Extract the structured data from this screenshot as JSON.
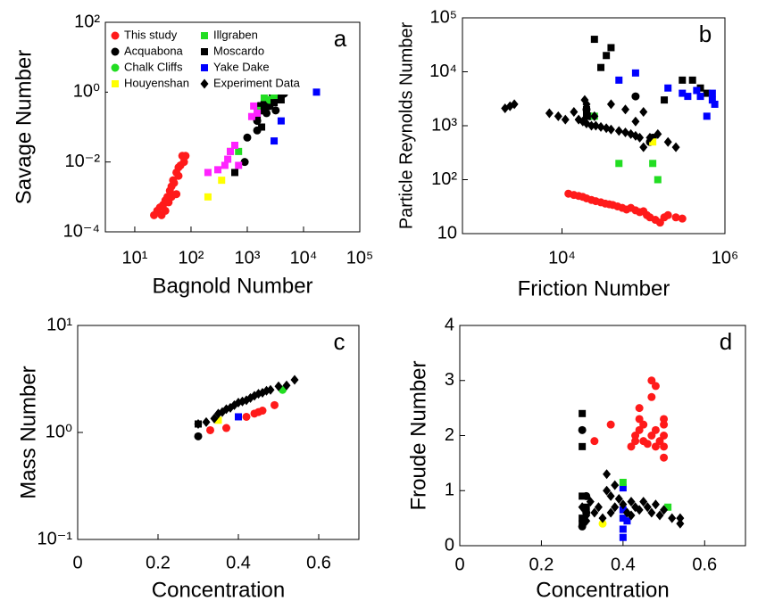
{
  "chart_data": [
    {
      "type": "scatter",
      "panel_label": "a",
      "xlabel": "Bagnold Number",
      "ylabel": "Savage Number",
      "xscale": "log",
      "yscale": "log",
      "xlim": [
        3,
        100000
      ],
      "ylim": [
        0.0001,
        100
      ],
      "xticks": [
        {
          "value": 10,
          "label": "10¹"
        },
        {
          "value": 100,
          "label": "10²"
        },
        {
          "value": 1000,
          "label": "10³"
        },
        {
          "value": 10000,
          "label": "10⁴"
        },
        {
          "value": 100000,
          "label": "10⁵"
        }
      ],
      "yticks": [
        {
          "value": 0.0001,
          "label": "10⁻⁴"
        },
        {
          "value": 0.01,
          "label": "10⁻²"
        },
        {
          "value": 1,
          "label": "10⁰"
        },
        {
          "value": 100,
          "label": "10²"
        }
      ],
      "legend": "upper left",
      "series": [
        {
          "name": "This study",
          "color": "#ff1a1a",
          "marker": "circle",
          "x": [
            22,
            25,
            28,
            30,
            32,
            35,
            38,
            40,
            42,
            45,
            48,
            50,
            55,
            60,
            65,
            70,
            75,
            80,
            35,
            45,
            55,
            60
          ],
          "values": [
            0.0003,
            0.0004,
            0.0005,
            0.0003,
            0.0006,
            0.0008,
            0.001,
            0.0007,
            0.0015,
            0.002,
            0.003,
            0.0025,
            0.005,
            0.004,
            0.008,
            0.015,
            0.01,
            0.015,
            0.0004,
            0.001,
            0.0012,
            0.007
          ]
        },
        {
          "name": "Acquabona",
          "color": "#000000",
          "marker": "circle",
          "x": [
            900,
            1000,
            1500,
            1800,
            2000,
            2500,
            3000,
            3500,
            4000,
            4500,
            2200,
            1600,
            3200,
            2800,
            1500
          ],
          "values": [
            0.01,
            0.05,
            0.15,
            0.3,
            0.5,
            0.4,
            0.6,
            0.7,
            0.8,
            0.9,
            0.25,
            0.4,
            0.3,
            0.9,
            0.08
          ]
        },
        {
          "name": "Chalk Cliffs",
          "color": "#22dd22",
          "marker": "circle",
          "x": [
            2500
          ],
          "values": [
            0.6
          ]
        },
        {
          "name": "Houyenshan",
          "color": "#ffff00",
          "marker": "square",
          "x": [
            200,
            350,
            500
          ],
          "values": [
            0.001,
            0.003,
            0.02
          ]
        },
        {
          "name": "Illgraben",
          "color": "#22dd22",
          "marker": "square",
          "x": [
            500,
            700,
            1500,
            2000,
            3000,
            4000
          ],
          "values": [
            0.02,
            0.02,
            0.3,
            0.7,
            0.8,
            2
          ]
        },
        {
          "name": "Moscardo",
          "color": "#000000",
          "marker": "square",
          "x": [
            600,
            1500,
            2000,
            3000,
            4000,
            1800
          ],
          "values": [
            0.005,
            0.2,
            0.35,
            0.5,
            0.6,
            0.1
          ]
        },
        {
          "name": "Yake Dake",
          "color": "#0000ff",
          "marker": "square",
          "x": [
            3000,
            4000,
            17000
          ],
          "values": [
            0.04,
            0.15,
            1
          ]
        },
        {
          "name": "Experiment Data",
          "color": "#000000",
          "marker": "diamond",
          "x": [],
          "values": []
        },
        {
          "color": "#ff22ff",
          "marker": "square",
          "x": [
            200,
            300,
            400,
            450,
            500,
            600,
            1200,
            1300,
            1500,
            700
          ],
          "values": [
            0.005,
            0.006,
            0.008,
            0.012,
            0.02,
            0.03,
            0.2,
            0.4,
            0.25,
            0.008
          ]
        }
      ]
    },
    {
      "type": "scatter",
      "panel_label": "b",
      "xlabel": "Friction Number",
      "ylabel": "Particle Reynolds Number",
      "xscale": "log",
      "yscale": "log",
      "xlim": [
        600,
        1000000
      ],
      "ylim": [
        10,
        100000
      ],
      "xticks": [
        {
          "value": 10000,
          "label": "10⁴"
        },
        {
          "value": 1000000,
          "label": "10⁶"
        }
      ],
      "yticks": [
        10,
        {
          "value": 100,
          "label": "10²"
        },
        {
          "value": 1000,
          "label": "10³"
        },
        {
          "value": 10000,
          "label": "10⁴"
        },
        {
          "value": 100000,
          "label": "10⁵"
        }
      ],
      "series": [
        {
          "color": "#ff1a1a",
          "marker": "circle",
          "x": [
            12000,
            14000,
            16000,
            18000,
            20000,
            23000,
            26000,
            30000,
            34000,
            38000,
            42000,
            48000,
            55000,
            62000,
            70000,
            80000,
            90000,
            100000,
            110000,
            120000,
            140000,
            160000,
            180000,
            200000,
            250000,
            300000
          ],
          "values": [
            55,
            52,
            50,
            48,
            45,
            42,
            40,
            38,
            36,
            35,
            34,
            32,
            30,
            28,
            30,
            27,
            25,
            26,
            22,
            20,
            18,
            16,
            20,
            22,
            20,
            19
          ]
        },
        {
          "color": "#000000",
          "marker": "circle",
          "x": [
            80000,
            20000,
            22000,
            130000,
            120000
          ],
          "values": [
            3500,
            2000,
            1500,
            600,
            500
          ]
        },
        {
          "color": "#ffff00",
          "marker": "square",
          "x": [
            130000
          ],
          "values": [
            500
          ]
        },
        {
          "color": "#22dd22",
          "marker": "square",
          "x": [
            50000,
            130000,
            150000,
            25000
          ],
          "values": [
            200,
            200,
            100,
            1500
          ]
        },
        {
          "color": "#000000",
          "marker": "square",
          "x": [
            25000,
            35000,
            40000,
            30000,
            180000,
            300000,
            400000,
            500000,
            600000,
            20000,
            20000
          ],
          "values": [
            40000,
            20000,
            28000,
            12000,
            3000,
            7000,
            7000,
            5000,
            4000,
            2000,
            1500
          ]
        },
        {
          "color": "#0000ff",
          "marker": "square",
          "x": [
            50000,
            80000,
            200000,
            300000,
            350000,
            450000,
            500000,
            600000,
            700000,
            750000,
            700000
          ],
          "values": [
            7000,
            9500,
            5000,
            4000,
            3500,
            4500,
            3500,
            1500,
            3000,
            2500,
            4000
          ]
        },
        {
          "color": "#000000",
          "marker": "diamond",
          "x": [
            2000,
            2300,
            2600,
            7000,
            9000,
            11000,
            14000,
            16000,
            18000,
            20000,
            23000,
            26000,
            30000,
            35000,
            40000,
            50000,
            60000,
            70000,
            80000,
            90000,
            19000,
            20000,
            25000,
            40000,
            60000,
            80000,
            100000,
            120000,
            150000,
            200000,
            250000,
            100000
          ],
          "values": [
            2100,
            2300,
            2500,
            1700,
            1500,
            1300,
            1800,
            1300,
            1200,
            1100,
            1000,
            1000,
            950,
            900,
            850,
            800,
            750,
            700,
            650,
            600,
            3000,
            2500,
            1500,
            2500,
            2000,
            1200,
            1800,
            600,
            700,
            500,
            400,
            400
          ]
        }
      ]
    },
    {
      "type": "scatter",
      "panel_label": "c",
      "xlabel": "Concentration",
      "ylabel": "Mass Number",
      "xscale": "linear",
      "yscale": "log",
      "xlim": [
        0,
        0.7
      ],
      "ylim": [
        0.1,
        10
      ],
      "xticks": [
        0,
        0.2,
        0.4,
        0.6
      ],
      "yticks": [
        {
          "value": 0.1,
          "label": "10⁻¹"
        },
        {
          "value": 1,
          "label": "10⁰"
        },
        {
          "value": 10,
          "label": "10¹"
        }
      ],
      "series": [
        {
          "color": "#ff1a1a",
          "marker": "circle",
          "x": [
            0.33,
            0.37,
            0.42,
            0.44,
            0.46,
            0.49,
            0.45
          ],
          "values": [
            1.05,
            1.1,
            1.4,
            1.5,
            1.6,
            1.8,
            1.55
          ]
        },
        {
          "color": "#000000",
          "marker": "circle",
          "x": [
            0.3
          ],
          "values": [
            0.92
          ]
        },
        {
          "color": "#000000",
          "marker": "square",
          "x": [
            0.3
          ],
          "values": [
            1.2
          ]
        },
        {
          "color": "#ffff00",
          "marker": "square",
          "x": [
            0.35
          ],
          "values": [
            1.3
          ]
        },
        {
          "color": "#0000ff",
          "marker": "square",
          "x": [
            0.4
          ],
          "values": [
            1.4
          ]
        },
        {
          "color": "#22dd22",
          "marker": "circle",
          "x": [
            0.51
          ],
          "values": [
            2.5
          ]
        },
        {
          "color": "#000000",
          "marker": "diamond",
          "x": [
            0.3,
            0.32,
            0.34,
            0.35,
            0.36,
            0.37,
            0.38,
            0.39,
            0.4,
            0.41,
            0.42,
            0.43,
            0.44,
            0.45,
            0.46,
            0.47,
            0.48,
            0.5,
            0.52,
            0.54
          ],
          "values": [
            1.2,
            1.25,
            1.35,
            1.5,
            1.55,
            1.65,
            1.7,
            1.8,
            1.9,
            1.95,
            2.0,
            2.1,
            2.2,
            2.3,
            2.35,
            2.45,
            2.5,
            2.7,
            2.75,
            3.1
          ]
        }
      ]
    },
    {
      "type": "scatter",
      "panel_label": "d",
      "xlabel": "Concentration",
      "ylabel": "Froude Number",
      "xscale": "linear",
      "yscale": "linear",
      "xlim": [
        0,
        0.7
      ],
      "ylim": [
        0,
        4
      ],
      "xticks": [
        0,
        0.2,
        0.4,
        0.6
      ],
      "yticks": [
        0,
        1,
        2,
        3,
        4
      ],
      "series": [
        {
          "color": "#ff1a1a",
          "marker": "circle",
          "x": [
            0.33,
            0.37,
            0.42,
            0.43,
            0.43,
            0.44,
            0.44,
            0.44,
            0.45,
            0.46,
            0.47,
            0.47,
            0.47,
            0.48,
            0.48,
            0.49,
            0.5,
            0.5,
            0.5,
            0.5,
            0.5,
            0.48,
            0.45
          ],
          "values": [
            1.9,
            2.2,
            1.8,
            1.9,
            2.0,
            2.1,
            2.3,
            2.5,
            1.9,
            1.85,
            2.0,
            2.7,
            3.0,
            1.8,
            2.1,
            1.9,
            1.6,
            1.8,
            2.0,
            2.2,
            2.3,
            2.9,
            2.2
          ]
        },
        {
          "color": "#000000",
          "marker": "square",
          "x": [
            0.3,
            0.3,
            0.3,
            0.3,
            0.3,
            0.31
          ],
          "values": [
            2.4,
            1.8,
            0.9,
            0.5,
            0.4,
            0.7
          ]
        },
        {
          "color": "#000000",
          "marker": "circle",
          "x": [
            0.3,
            0.3,
            0.31,
            0.31
          ],
          "values": [
            2.1,
            0.35,
            0.6,
            0.9
          ]
        },
        {
          "color": "#0000ff",
          "marker": "square",
          "x": [
            0.4,
            0.4,
            0.4,
            0.4,
            0.4,
            0.41
          ],
          "values": [
            0.15,
            0.3,
            0.5,
            0.65,
            1.05,
            0.45
          ]
        },
        {
          "color": "#22dd22",
          "marker": "square",
          "x": [
            0.4,
            0.51
          ],
          "values": [
            1.15,
            0.7
          ]
        },
        {
          "color": "#ffff00",
          "marker": "circle",
          "x": [
            0.35
          ],
          "values": [
            0.4
          ]
        },
        {
          "color": "#000000",
          "marker": "diamond",
          "x": [
            0.3,
            0.31,
            0.32,
            0.33,
            0.34,
            0.35,
            0.36,
            0.36,
            0.37,
            0.37,
            0.38,
            0.38,
            0.39,
            0.4,
            0.41,
            0.42,
            0.42,
            0.43,
            0.44,
            0.45,
            0.46,
            0.47,
            0.48,
            0.49,
            0.5,
            0.52,
            0.54,
            0.54,
            0.31
          ],
          "values": [
            0.7,
            0.55,
            0.8,
            0.6,
            0.7,
            0.5,
            1.0,
            1.3,
            0.9,
            0.6,
            0.7,
            1.1,
            0.85,
            0.75,
            0.6,
            0.8,
            0.55,
            0.7,
            0.65,
            0.8,
            0.7,
            0.6,
            0.75,
            0.55,
            0.65,
            0.5,
            0.4,
            0.5,
            0.45
          ]
        }
      ]
    }
  ]
}
